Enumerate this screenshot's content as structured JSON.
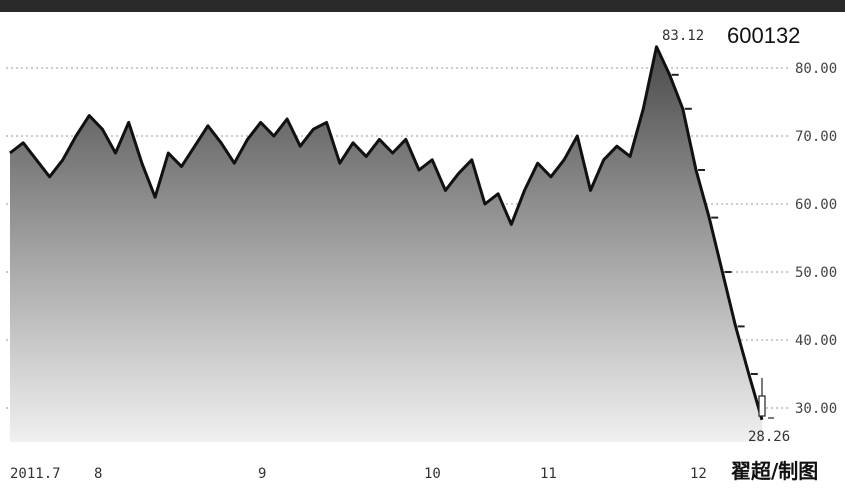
{
  "chart_data": {
    "type": "area",
    "stock_code": "600132",
    "credit": "翟超/制图",
    "x_ticks": [
      "2011.7",
      "8",
      "9",
      "10",
      "11",
      "12"
    ],
    "y_ticks": [
      "80.00",
      "70.00",
      "60.00",
      "50.00",
      "40.00",
      "30.00"
    ],
    "ylim": [
      26,
      86
    ],
    "grid": "horizontal dotted",
    "annotations": {
      "high": "83.12",
      "low": "28.26"
    },
    "series": [
      {
        "values": [
          67.5,
          69.0,
          66.5,
          64.0,
          66.5,
          70.0,
          73.0,
          71.0,
          67.5,
          72.0,
          66.0,
          61.0,
          67.5,
          65.5,
          68.5,
          71.5,
          69.0,
          66.0,
          69.5,
          72.0,
          70.0,
          72.5,
          68.5,
          71.0,
          72.0,
          66.0,
          69.0,
          67.0,
          69.5,
          67.5,
          69.5,
          65.0,
          66.5,
          62.0,
          64.5,
          66.5,
          60.0,
          61.5,
          57.0,
          62.0,
          66.0,
          64.0,
          66.5,
          70.0,
          62.0,
          66.5,
          68.5,
          67.0,
          74.0,
          83.12,
          79.0,
          74.0,
          65.0,
          58.0,
          50.0,
          42.0,
          35.0,
          28.26
        ]
      }
    ]
  }
}
